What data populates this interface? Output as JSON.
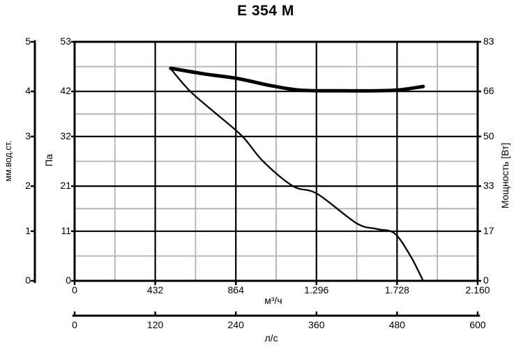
{
  "title": "E 354 M",
  "axes": {
    "left_aux": {
      "label": "мм.вод.ст.",
      "ticks": [
        "0",
        "1",
        "2",
        "3",
        "4",
        "5"
      ]
    },
    "left": {
      "label": "Па",
      "ticks": [
        "0",
        "11",
        "21",
        "32",
        "42",
        "53"
      ]
    },
    "right": {
      "label": "Мощность [Вт]",
      "ticks": [
        "0",
        "17",
        "33",
        "50",
        "66",
        "83"
      ]
    },
    "bottom": {
      "label": "м³/ч",
      "ticks": [
        "0",
        "432",
        "864",
        "1.296",
        "1.728",
        "2.160"
      ]
    },
    "bottom_aux": {
      "label": "л/с",
      "ticks": [
        "0",
        "120",
        "240",
        "360",
        "480",
        "600"
      ]
    }
  },
  "colors": {
    "background": "#ffffff",
    "curve": "#000000",
    "major_grid": "#000000",
    "minor_grid": "#b0b0b0",
    "text": "#000000"
  },
  "chart_data": {
    "type": "line",
    "title": "E 354 M",
    "grid": "major black + minor gray at midpoints",
    "legend": "none",
    "x_axis": {
      "label": "м³/ч",
      "min": 0,
      "max": 2160,
      "ticks": [
        0,
        432,
        864,
        1296,
        1728,
        2160
      ],
      "secondary": {
        "label": "л/с",
        "min": 0,
        "max": 600,
        "ticks": [
          0,
          120,
          240,
          360,
          480,
          600
        ]
      }
    },
    "y_axis_left": {
      "label": "Па",
      "min": 0,
      "max": 53,
      "ticks": [
        0,
        11,
        21,
        32,
        42,
        53
      ],
      "secondary": {
        "label": "мм.вод.ст.",
        "min": 0,
        "max": 5,
        "ticks": [
          0,
          1,
          2,
          3,
          4,
          5
        ]
      }
    },
    "y_axis_right": {
      "label": "Мощность [Вт]",
      "min": 0,
      "max": 83,
      "ticks": [
        0,
        17,
        33,
        50,
        66,
        83
      ]
    },
    "series": [
      {
        "name": "pressure-curve",
        "y_axis": "left",
        "units": {
          "x": "м³/ч",
          "y": "Па"
        },
        "stroke_width": 2.3,
        "points": [
          [
            515,
            47
          ],
          [
            620,
            42
          ],
          [
            760,
            37
          ],
          [
            900,
            32
          ],
          [
            1010,
            26.5
          ],
          [
            1170,
            21
          ],
          [
            1300,
            19.3
          ],
          [
            1510,
            12.8
          ],
          [
            1620,
            11.5
          ],
          [
            1715,
            10.5
          ],
          [
            1800,
            5.5
          ],
          [
            1868,
            0
          ]
        ]
      },
      {
        "name": "power-curve",
        "y_axis": "right",
        "units": {
          "x": "м³/ч",
          "y": "Вт"
        },
        "stroke_width": 5,
        "points": [
          [
            515,
            73.8
          ],
          [
            700,
            71.8
          ],
          [
            870,
            70.3
          ],
          [
            1050,
            67.8
          ],
          [
            1210,
            66.2
          ],
          [
            1420,
            66
          ],
          [
            1620,
            66
          ],
          [
            1740,
            66.3
          ],
          [
            1868,
            67.5
          ]
        ]
      }
    ]
  }
}
